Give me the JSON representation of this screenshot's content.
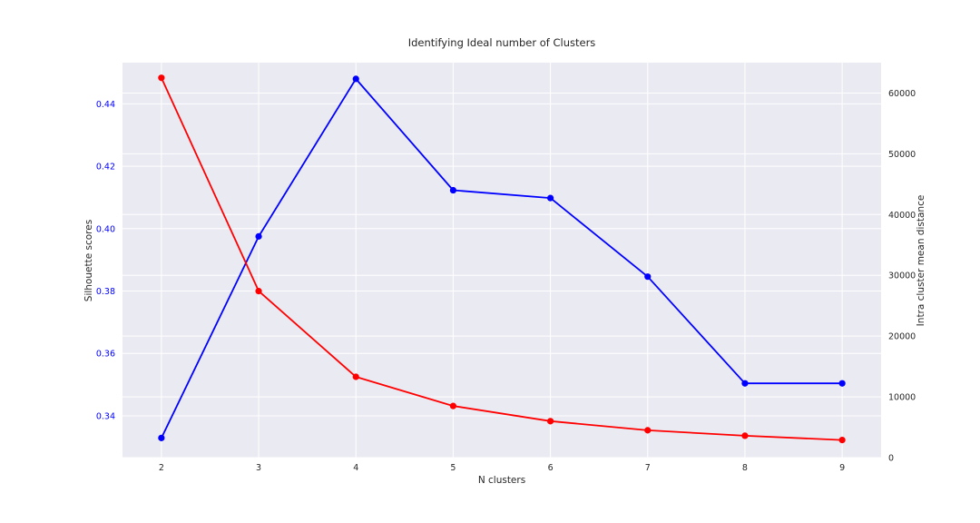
{
  "chart_data": {
    "type": "line",
    "title": "Identifying Ideal number of Clusters",
    "xlabel": "N clusters",
    "ylabel_left": "Silhouette scores",
    "ylabel_right": "Intra cluster mean distance",
    "x": [
      2,
      3,
      4,
      5,
      6,
      7,
      8,
      9
    ],
    "x_ticks": [
      "2",
      "3",
      "4",
      "5",
      "6",
      "7",
      "8",
      "9"
    ],
    "xlim": [
      1.6,
      9.4
    ],
    "ylim_left": [
      0.3266,
      0.4532
    ],
    "ylim_right": [
      0,
      65000
    ],
    "yticks_left": [
      "0.34",
      "0.36",
      "0.38",
      "0.40",
      "0.42",
      "0.44"
    ],
    "yticks_left_values": [
      0.34,
      0.36,
      0.38,
      0.4,
      0.42,
      0.44
    ],
    "yticks_right": [
      "0",
      "10000",
      "20000",
      "30000",
      "40000",
      "50000",
      "60000"
    ],
    "yticks_right_values": [
      0,
      10000,
      20000,
      30000,
      40000,
      50000,
      60000
    ],
    "grid": true,
    "series": [
      {
        "axis": "left",
        "color": "#0000ff",
        "values": [
          0.3329,
          0.3975,
          0.448,
          0.4123,
          0.4098,
          0.3846,
          0.3504,
          0.3504
        ]
      },
      {
        "axis": "right",
        "color": "#ff0000",
        "values": [
          62500,
          27400,
          13300,
          8500,
          6000,
          4500,
          3600,
          2900
        ]
      }
    ],
    "left_tick_color": "#0000ff",
    "plot_background": "#eaeaf2"
  }
}
